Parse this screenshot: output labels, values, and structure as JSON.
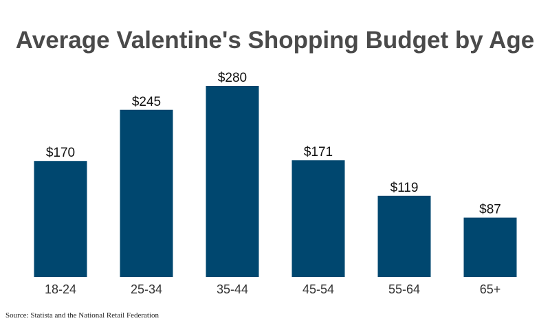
{
  "chart_data": {
    "type": "bar",
    "title": "Average Valentine's Shopping Budget by Age",
    "categories": [
      "18-24",
      "25-34",
      "35-44",
      "45-54",
      "55-64",
      "65+"
    ],
    "values": [
      170,
      245,
      280,
      171,
      119,
      87
    ],
    "value_labels": [
      "$170",
      "$245",
      "$280",
      "$171",
      "$119",
      "$87"
    ],
    "xlabel": "",
    "ylabel": "",
    "ylim": [
      0,
      280
    ],
    "grid": false,
    "legend": "none",
    "bar_color": "#00476f"
  },
  "source": "Source: Statista and the National Retail Federation"
}
